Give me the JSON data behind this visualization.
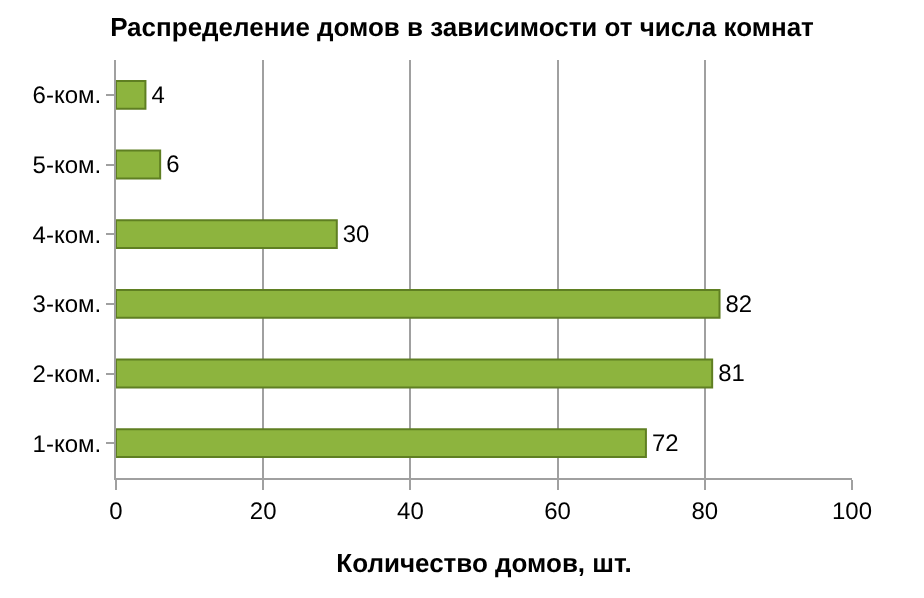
{
  "chart_data": {
    "type": "bar",
    "orientation": "horizontal",
    "title": "Распределение домов в зависимости от числа комнат",
    "xlabel": "Количество домов, шт.",
    "categories": [
      "6-ком.",
      "5-ком.",
      "4-ком.",
      "3-ком.",
      "2-ком.",
      "1-ком."
    ],
    "values": [
      4,
      6,
      30,
      82,
      81,
      72
    ],
    "color": "#8db43e",
    "xlim": [
      0,
      100
    ],
    "xticks": [
      0,
      20,
      40,
      60,
      80,
      100
    ],
    "grid": "x",
    "data_labels": true
  }
}
